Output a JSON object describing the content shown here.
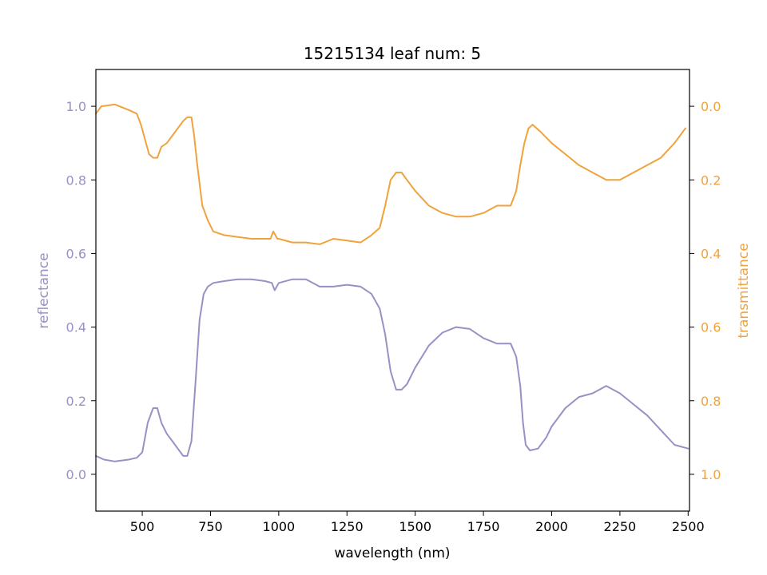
{
  "chart_data": {
    "type": "line",
    "title": "15215134 leaf num: 5",
    "xlabel": "wavelength (nm)",
    "ylabel_left": "reflectance",
    "ylabel_right": "transmittance",
    "xlim": [
      330,
      2505
    ],
    "ylim_left": [
      -0.1,
      1.1
    ],
    "ylim_right_inverted": [
      1.1,
      -0.1
    ],
    "x_ticks": [
      500,
      750,
      1000,
      1250,
      1500,
      1750,
      2000,
      2250,
      2500
    ],
    "x_tick_labels": [
      "500",
      "750",
      "1000",
      "1250",
      "1500",
      "1750",
      "2000",
      "2250",
      "2500"
    ],
    "y_left_ticks": [
      0.0,
      0.2,
      0.4,
      0.6,
      0.8,
      1.0
    ],
    "y_left_tick_labels": [
      "0.0",
      "0.2",
      "0.4",
      "0.6",
      "0.8",
      "1.0"
    ],
    "y_right_ticks": [
      0.0,
      0.2,
      0.4,
      0.6,
      0.8,
      1.0
    ],
    "y_right_tick_labels": [
      "0.0",
      "0.2",
      "0.4",
      "0.6",
      "0.8",
      "1.0"
    ],
    "grid": false,
    "series": [
      {
        "axis": "left",
        "color": "#9791c4",
        "x": [
          330,
          360,
          400,
          450,
          480,
          500,
          520,
          540,
          555,
          570,
          590,
          610,
          630,
          650,
          665,
          680,
          695,
          710,
          725,
          740,
          760,
          800,
          850,
          900,
          950,
          975,
          985,
          1000,
          1050,
          1100,
          1150,
          1200,
          1250,
          1300,
          1340,
          1370,
          1390,
          1410,
          1430,
          1450,
          1470,
          1500,
          1550,
          1600,
          1650,
          1700,
          1750,
          1800,
          1850,
          1870,
          1885,
          1895,
          1905,
          1920,
          1950,
          1980,
          2000,
          2050,
          2100,
          2150,
          2200,
          2250,
          2300,
          2350,
          2400,
          2450,
          2500
        ],
        "y": [
          0.05,
          0.04,
          0.035,
          0.04,
          0.045,
          0.06,
          0.14,
          0.18,
          0.18,
          0.14,
          0.11,
          0.09,
          0.07,
          0.05,
          0.05,
          0.09,
          0.25,
          0.42,
          0.49,
          0.51,
          0.52,
          0.525,
          0.53,
          0.53,
          0.525,
          0.52,
          0.5,
          0.52,
          0.53,
          0.53,
          0.51,
          0.51,
          0.515,
          0.51,
          0.49,
          0.45,
          0.38,
          0.28,
          0.23,
          0.23,
          0.245,
          0.29,
          0.35,
          0.385,
          0.4,
          0.395,
          0.37,
          0.355,
          0.355,
          0.32,
          0.24,
          0.14,
          0.08,
          0.065,
          0.07,
          0.1,
          0.13,
          0.18,
          0.21,
          0.22,
          0.24,
          0.22,
          0.19,
          0.16,
          0.12,
          0.08,
          0.07
        ]
      },
      {
        "axis": "right",
        "color": "#f0a33c",
        "x": [
          330,
          350,
          400,
          450,
          480,
          495,
          510,
          525,
          540,
          555,
          570,
          590,
          610,
          630,
          650,
          665,
          680,
          690,
          700,
          720,
          740,
          760,
          800,
          850,
          900,
          950,
          970,
          980,
          995,
          1000,
          1050,
          1100,
          1150,
          1200,
          1250,
          1300,
          1340,
          1370,
          1390,
          1410,
          1430,
          1450,
          1470,
          1500,
          1550,
          1600,
          1650,
          1700,
          1750,
          1800,
          1850,
          1870,
          1885,
          1900,
          1915,
          1930,
          1960,
          2000,
          2050,
          2100,
          2150,
          2200,
          2250,
          2300,
          2350,
          2400,
          2450,
          2490
        ],
        "y": [
          0.02,
          0.0,
          -0.005,
          0.01,
          0.02,
          0.05,
          0.09,
          0.13,
          0.14,
          0.14,
          0.11,
          0.1,
          0.08,
          0.06,
          0.04,
          0.03,
          0.03,
          0.08,
          0.15,
          0.27,
          0.31,
          0.34,
          0.35,
          0.355,
          0.36,
          0.36,
          0.36,
          0.34,
          0.36,
          0.36,
          0.37,
          0.37,
          0.375,
          0.36,
          0.365,
          0.37,
          0.35,
          0.33,
          0.27,
          0.2,
          0.18,
          0.18,
          0.2,
          0.23,
          0.27,
          0.29,
          0.3,
          0.3,
          0.29,
          0.27,
          0.27,
          0.23,
          0.16,
          0.1,
          0.06,
          0.05,
          0.07,
          0.1,
          0.13,
          0.16,
          0.18,
          0.2,
          0.2,
          0.18,
          0.16,
          0.14,
          0.1,
          0.06
        ]
      }
    ]
  }
}
